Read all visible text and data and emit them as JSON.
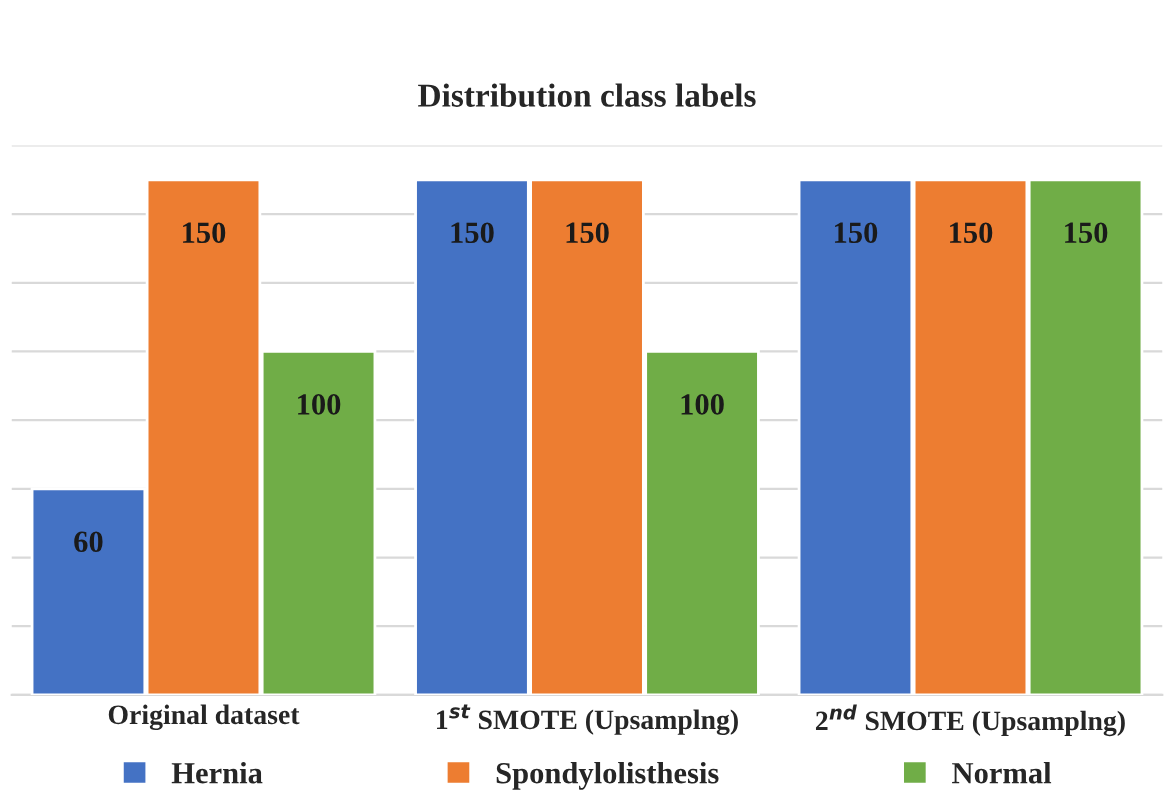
{
  "chart_data": {
    "type": "bar",
    "title": "Distribution class labels",
    "categories": [
      "Original dataset",
      "1$^{st}$ SMOTE (Upsamplng)",
      "2$^{nd}$ SMOTE (Upsamplng)"
    ],
    "series": [
      {
        "name": "Hernia",
        "color": "#4472c4",
        "values": [
          60,
          150,
          150
        ]
      },
      {
        "name": "Spondylolisthesis",
        "color": "#ed7d31",
        "values": [
          150,
          150,
          150
        ]
      },
      {
        "name": "Normal",
        "color": "#70ad47",
        "values": [
          100,
          100,
          150
        ]
      }
    ],
    "ylim": [
      0,
      160
    ],
    "yticks": [
      {
        "value": 0,
        "label": null
      },
      {
        "value": 20,
        "label": null
      },
      {
        "value": 40,
        "label": null
      },
      {
        "value": 60,
        "label": null
      },
      {
        "value": 80,
        "label": null
      },
      {
        "value": 100,
        "label": null
      },
      {
        "value": 120,
        "label": null
      },
      {
        "value": 140,
        "label": null
      },
      {
        "value": 160,
        "label": null
      }
    ],
    "grid": "y",
    "legend": "bottom",
    "data_labels": true,
    "tick_labels": "x"
  }
}
